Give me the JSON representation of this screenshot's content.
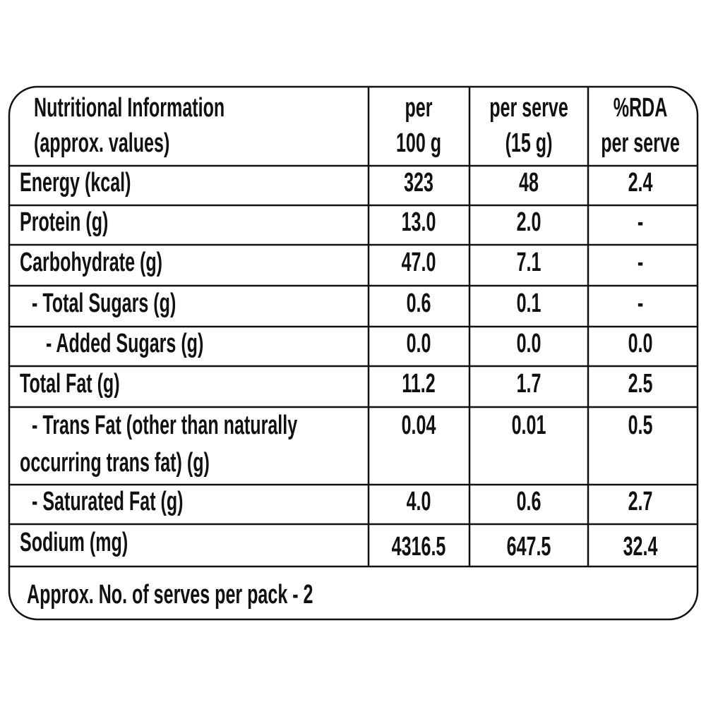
{
  "table": {
    "header": [
      [
        "Nutritional Information",
        "(approx. values)"
      ],
      [
        "per",
        "100 g"
      ],
      [
        "per serve",
        "(15 g)"
      ],
      [
        "%RDA",
        "per serve"
      ]
    ],
    "rows": [
      [
        [
          "Energy (kcal)"
        ],
        "323",
        "48",
        "2.4"
      ],
      [
        [
          "Protein (g)"
        ],
        "13.0",
        "2.0",
        "-"
      ],
      [
        [
          "Carbohydrate (g)"
        ],
        "47.0",
        "7.1",
        "-"
      ],
      [
        [
          "- Total Sugars (g)"
        ],
        "0.6",
        "0.1",
        "-"
      ],
      [
        [
          "- Added Sugars (g)"
        ],
        "0.0",
        "0.0",
        "0.0"
      ],
      [
        [
          "Total Fat (g)"
        ],
        "11.2",
        "1.7",
        "2.5"
      ],
      [
        [
          "- Trans Fat (other than naturally",
          "occurring trans fat) (g)"
        ],
        "0.04",
        "0.01",
        "0.5"
      ],
      [
        [
          "- Saturated Fat (g)"
        ],
        "4.0",
        "0.6",
        "2.7"
      ],
      [
        [
          "Sodium (mg)"
        ],
        "4316.5",
        "647.5",
        "32.4"
      ]
    ],
    "footer": "Approx. No. of serves per pack - 2"
  }
}
